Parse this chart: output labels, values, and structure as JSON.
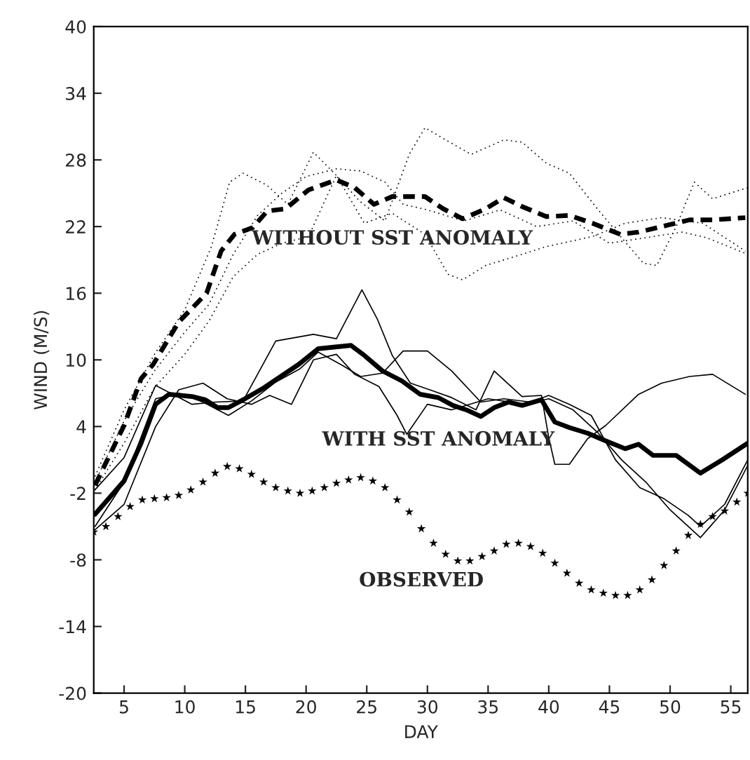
{
  "chart_data": {
    "type": "line",
    "xlabel": "DAY",
    "ylabel": "WIND (M/S)",
    "xlim": [
      2.5,
      56.4
    ],
    "xticks": [
      5,
      10,
      15,
      20,
      25,
      30,
      35,
      40,
      45,
      50,
      55
    ],
    "ylim": [
      -20,
      40
    ],
    "yticks": [
      -20,
      -14,
      -8,
      -2,
      4,
      10,
      16,
      22,
      28,
      34,
      40
    ],
    "grid": false,
    "legend": false,
    "series": [
      {
        "color": "#000000",
        "line_style": "dotted",
        "x": [
          2.6,
          5,
          7.5,
          10,
          12.2,
          13.7,
          14.8,
          16.8,
          18.5,
          20.6,
          22.5,
          24.4,
          26.5,
          28.5,
          29.8,
          31.5,
          33.6,
          36.3,
          37.8,
          39.8,
          41.7,
          44.0,
          46.0,
          47.8,
          48.9,
          50.5,
          52.0,
          53.5,
          55.8,
          56.4
        ],
        "values": [
          -0.5,
          5.5,
          10.5,
          14.5,
          20.2,
          26.0,
          26.8,
          25.7,
          24.0,
          28.7,
          26.6,
          24.3,
          22.5,
          28.5,
          30.9,
          29.8,
          28.5,
          29.8,
          29.6,
          27.7,
          26.8,
          23.6,
          21.0,
          18.7,
          18.5,
          22.0,
          26.0,
          24.5,
          25.3,
          25.5
        ]
      },
      {
        "color": "#000000",
        "line_style": "dotted",
        "x": [
          2.6,
          5,
          7.5,
          10,
          12,
          14,
          16,
          18,
          20.2,
          22.5,
          24.8,
          27.1,
          29.8,
          31.7,
          32.9,
          34.8,
          37.5,
          39.8,
          43.6,
          46.3,
          49.3,
          52.7,
          56.2
        ],
        "values": [
          -1.7,
          2.5,
          7.5,
          10.5,
          13.5,
          17.5,
          19.5,
          20.5,
          21.1,
          26.6,
          22.3,
          23.2,
          21.3,
          17.7,
          17.2,
          18.5,
          19.4,
          20.2,
          21.1,
          22.3,
          22.8,
          22.3,
          19.8
        ]
      },
      {
        "color": "#000000",
        "line_style": "dotted",
        "x": [
          2.6,
          5,
          7.5,
          10,
          12,
          14,
          16,
          18,
          20,
          22.5,
          24.5,
          26.5,
          28,
          30,
          33,
          36,
          39,
          42,
          45,
          48,
          51,
          53,
          56.4
        ],
        "values": [
          -1.0,
          4.5,
          9.0,
          12.5,
          15.0,
          19.5,
          23.0,
          25.0,
          26.5,
          27.2,
          27.0,
          26.0,
          24.0,
          23.5,
          22.5,
          23.5,
          22.0,
          22.5,
          20.5,
          21.0,
          21.5,
          21.0,
          19.5
        ]
      },
      {
        "name": "WITHOUT SST ANOMALY",
        "color": "#000000",
        "line_style": "dashed",
        "x": [
          2.6,
          5.0,
          6.4,
          7.4,
          9.5,
          11.8,
          13.0,
          14.1,
          15.6,
          16.8,
          18.3,
          20.2,
          22.5,
          24.0,
          25.6,
          27.1,
          29.8,
          31.3,
          32.9,
          34.8,
          36.3,
          37.8,
          39.8,
          41.7,
          43.6,
          45.9,
          47.4,
          49.7,
          51.6,
          53.5,
          56.2
        ],
        "values": [
          -1.3,
          4.1,
          8.3,
          9.6,
          13.4,
          16.0,
          19.8,
          21.3,
          21.9,
          23.4,
          23.6,
          25.3,
          26.2,
          25.5,
          24.0,
          24.7,
          24.7,
          23.6,
          22.7,
          23.6,
          24.6,
          23.8,
          22.9,
          23.0,
          22.3,
          21.3,
          21.5,
          22.1,
          22.6,
          22.6,
          22.8
        ]
      },
      {
        "color": "#000000",
        "line_style": "solid",
        "x": [
          2.6,
          5.0,
          7.6,
          10.6,
          12.5,
          14.8,
          17.5,
          20.6,
          22.5,
          24.6,
          25.9,
          27.1,
          28.6,
          30.2,
          32.0,
          34.0,
          35.5,
          37.8,
          39.4,
          40.0,
          40.5,
          41.7,
          43.2,
          44.7,
          47.4,
          49.3,
          51.6,
          53.5,
          56.2
        ],
        "values": [
          -1.7,
          1.2,
          7.7,
          6.0,
          6.2,
          6.3,
          11.7,
          12.3,
          11.9,
          16.3,
          13.6,
          10.4,
          7.9,
          7.3,
          6.6,
          5.5,
          9.0,
          6.7,
          6.8,
          3.0,
          0.6,
          0.6,
          2.9,
          4.1,
          6.9,
          7.9,
          8.5,
          8.7,
          6.9
        ]
      },
      {
        "color": "#000000",
        "line_style": "solid",
        "x": [
          2.6,
          5.0,
          7.6,
          9.5,
          11.5,
          13.5,
          15.5,
          17.0,
          18.8,
          20.6,
          22.5,
          24.0,
          26.0,
          27.5,
          28.3,
          30,
          32,
          35,
          38,
          40,
          42,
          44,
          46,
          48,
          50,
          52.5,
          54.5,
          56.4
        ],
        "values": [
          -5.3,
          -3.0,
          4.0,
          7.3,
          7.9,
          6.5,
          6.0,
          6.8,
          6.0,
          10.0,
          10.5,
          8.7,
          7.6,
          5.0,
          3.3,
          6.0,
          5.5,
          6.5,
          6.0,
          6.5,
          5.5,
          3.5,
          1.0,
          -1.0,
          -3.5,
          -6.0,
          -3.5,
          0.5
        ]
      },
      {
        "color": "#000000",
        "line_style": "solid",
        "x": [
          2.6,
          5.0,
          7.6,
          9.5,
          11.5,
          13.6,
          15.5,
          17.5,
          19.5,
          21.0,
          23.0,
          24.5,
          26.3,
          28.0,
          30.0,
          32.0,
          34.4,
          36.3,
          38.5,
          40.0,
          41.7,
          43.5,
          45.5,
          47.5,
          49.5,
          51.5,
          52.5,
          54.5,
          56.4
        ],
        "values": [
          -5.0,
          -1.0,
          6.5,
          7.0,
          6.2,
          5.0,
          6.3,
          8.0,
          9.2,
          10.7,
          9.5,
          8.5,
          8.8,
          10.8,
          10.8,
          9.0,
          6.2,
          6.5,
          6.2,
          6.8,
          6.0,
          5.0,
          1.0,
          -1.5,
          -2.5,
          -4.0,
          -5.0,
          -3.0,
          1.0
        ]
      },
      {
        "name": "WITH SST ANOMALY",
        "color": "#000000",
        "line_style": "solid",
        "x": [
          2.6,
          5.0,
          6.4,
          7.6,
          8.7,
          10.6,
          11.7,
          12.7,
          13.6,
          14.8,
          16.4,
          17.9,
          19.4,
          21.0,
          23.7,
          24.8,
          26.3,
          27.9,
          29.4,
          30.9,
          32.1,
          33.2,
          34.4,
          35.5,
          36.7,
          37.8,
          39.4,
          40.5,
          41.7,
          43.2,
          44.7,
          46.3,
          47.4,
          48.6,
          50.5,
          52.5,
          54.3,
          56.4
        ],
        "values": [
          -3.9,
          -0.9,
          2.5,
          6.0,
          6.9,
          6.7,
          6.4,
          5.7,
          5.7,
          6.4,
          7.4,
          8.5,
          9.6,
          11.0,
          11.3,
          10.4,
          9.0,
          8.1,
          6.9,
          6.6,
          5.9,
          5.5,
          4.9,
          5.7,
          6.2,
          5.9,
          6.4,
          4.4,
          3.9,
          3.4,
          2.7,
          2.0,
          2.4,
          1.4,
          1.4,
          -0.2,
          1.0,
          2.5
        ]
      },
      {
        "name": "OBSERVED",
        "type": "scatter",
        "marker": "star",
        "color": "#000000",
        "x": [
          2.5,
          3.5,
          4.5,
          5.5,
          6.5,
          7.5,
          8.5,
          9.5,
          10.5,
          11.5,
          12.5,
          13.5,
          14.5,
          15.5,
          16.5,
          17.5,
          18.5,
          19.5,
          20.5,
          21.5,
          22.5,
          23.5,
          24.5,
          25.5,
          26.5,
          27.5,
          28.5,
          29.5,
          30.5,
          31.5,
          32.5,
          33.5,
          34.5,
          35.5,
          36.5,
          37.5,
          38.5,
          39.5,
          40.5,
          41.5,
          42.5,
          43.5,
          44.5,
          45.5,
          46.5,
          47.5,
          48.5,
          49.5,
          50.5,
          51.5,
          52.5,
          53.5,
          54.5,
          55.5,
          56.4
        ],
        "values": [
          -5.5,
          -5.0,
          -4.1,
          -3.2,
          -2.6,
          -2.5,
          -2.4,
          -2.2,
          -1.7,
          -1.0,
          -0.2,
          0.4,
          0.2,
          -0.3,
          -1.0,
          -1.5,
          -1.8,
          -2.0,
          -1.8,
          -1.5,
          -1.1,
          -0.8,
          -0.6,
          -0.9,
          -1.5,
          -2.6,
          -3.7,
          -5.2,
          -6.5,
          -7.5,
          -8.1,
          -8.1,
          -7.7,
          -7.2,
          -6.6,
          -6.5,
          -6.8,
          -7.4,
          -8.3,
          -9.2,
          -10.1,
          -10.7,
          -11.0,
          -11.2,
          -11.2,
          -10.7,
          -9.8,
          -8.5,
          -7.2,
          -5.8,
          -4.8,
          -4.1,
          -3.6,
          -2.8,
          -2.0
        ]
      }
    ]
  }
}
